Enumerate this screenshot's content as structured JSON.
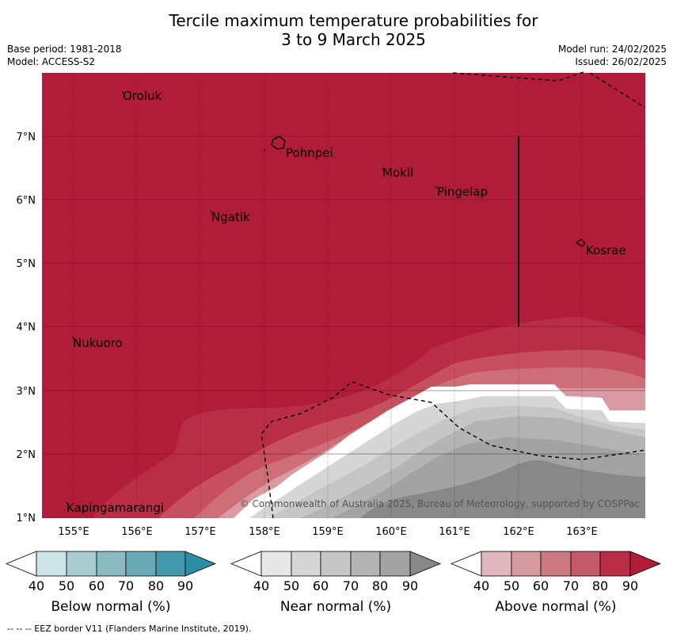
{
  "header": {
    "title_line1": "Tercile maximum temperature probabilities for",
    "title_line2": "3 to 9 March 2025",
    "base_period": "Base period: 1981-2018",
    "model": "Model: ACCESS-S2",
    "model_run": "Model run: 24/02/2025",
    "issued": "Issued: 26/02/2025"
  },
  "map": {
    "lon_labels": [
      "155°E",
      "156°E",
      "157°E",
      "158°E",
      "159°E",
      "160°E",
      "161°E",
      "162°E",
      "163°E"
    ],
    "lat_labels": [
      "7°N",
      "6°N",
      "5°N",
      "4°N",
      "3°N",
      "2°N",
      "1°N"
    ],
    "places": [
      {
        "name": "Oroluk"
      },
      {
        "name": "Pohnpei"
      },
      {
        "name": "Mokil"
      },
      {
        "name": "Pingelap"
      },
      {
        "name": "Ngatik"
      },
      {
        "name": "Kosrae"
      },
      {
        "name": "Nukuoro"
      },
      {
        "name": "Kapingamarangi"
      }
    ],
    "copyright": "© Commonwealth of Australia 2025, Bureau of Meteorology, supported by COSPPac",
    "colors": {
      "above_90": "#b11d38",
      "above_80": "#b92d45",
      "above_70": "#c7505f",
      "above_60": "#cd6e79",
      "above_50": "#d99aa1",
      "near_50": "#d6d6d6",
      "near_60": "#c6c6c6",
      "near_70": "#b4b4b4",
      "near_80": "#a3a3a3",
      "near_90": "#888888"
    }
  },
  "colorbars": [
    {
      "label": "Below normal (%)",
      "ticks": [
        "40",
        "50",
        "60",
        "70",
        "80",
        "90"
      ],
      "colors": [
        "#ffffff",
        "#cce3e8",
        "#a9cbd2",
        "#8cbac3",
        "#6aa9b6",
        "#4599ac",
        "#2b8ea5"
      ]
    },
    {
      "label": "Near normal (%)",
      "ticks": [
        "40",
        "50",
        "60",
        "70",
        "80",
        "90"
      ],
      "colors": [
        "#ffffff",
        "#e7e7e7",
        "#d6d6d6",
        "#c6c6c6",
        "#b4b4b4",
        "#a3a3a3",
        "#888888"
      ]
    },
    {
      "label": "Above normal (%)",
      "ticks": [
        "40",
        "50",
        "60",
        "70",
        "80",
        "90"
      ],
      "colors": [
        "#ffffff",
        "#e2b6bd",
        "#d89aa1",
        "#cd7982",
        "#c45a68",
        "#b92d45",
        "#b11d38"
      ]
    }
  ],
  "footer": {
    "legend_text": "-- -- -- EEZ border V11 (Flanders Marine Institute, 2019)."
  }
}
